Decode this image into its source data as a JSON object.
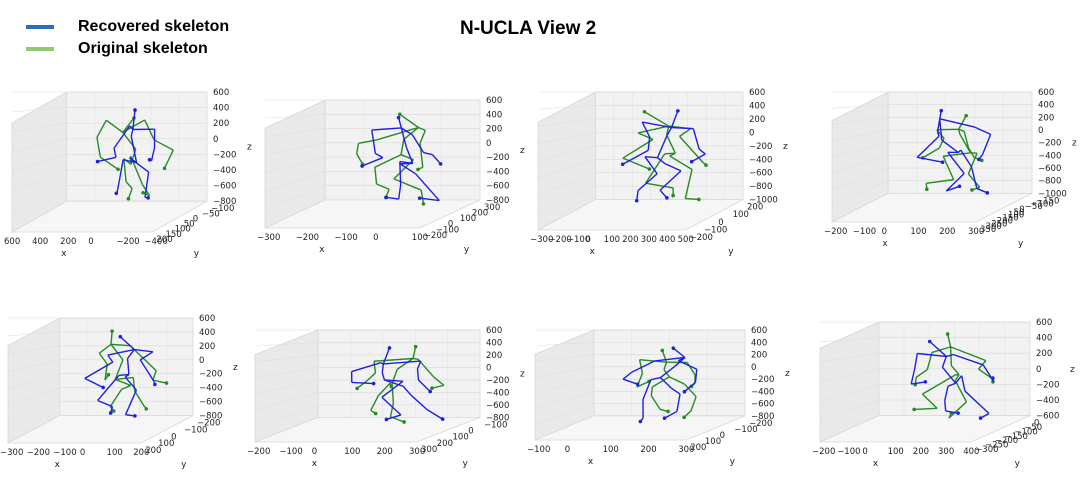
{
  "title": "N-UCLA View 2",
  "legend": [
    {
      "label": "Recovered skeleton",
      "color": "#2f6fba"
    },
    {
      "label": "Original skeleton",
      "color": "#92c77a"
    }
  ],
  "colors": {
    "recovered": "#1f1fe0",
    "original": "#238b23"
  },
  "chart_data": [
    {
      "type": "3d-line",
      "xlabel": "x",
      "ylabel": "y",
      "zlabel": "z",
      "xticks": [
        "600",
        "400",
        "200",
        "0",
        "−200",
        "−400"
      ],
      "yticks": [
        "200",
        "150",
        "100",
        "50",
        "0",
        "−50",
        "−100"
      ],
      "zticks": [
        "600",
        "400",
        "200",
        "0",
        "−200",
        "−400",
        "−600",
        "−800"
      ]
    },
    {
      "type": "3d-line",
      "xlabel": "x",
      "ylabel": "y",
      "zlabel": "z",
      "xticks": [
        "−300",
        "−200",
        "−100",
        "0",
        "100"
      ],
      "yticks": [
        "−200",
        "−100",
        "0",
        "100",
        "200",
        "300"
      ],
      "zticks": [
        "600",
        "400",
        "200",
        "0",
        "−200",
        "−400",
        "−600",
        "−800"
      ]
    },
    {
      "type": "3d-line",
      "xlabel": "x",
      "ylabel": "y",
      "zlabel": "z",
      "xticks": [
        "−300",
        "−200",
        "−100",
        "0",
        "100",
        "200",
        "300",
        "400",
        "500"
      ],
      "yticks": [
        "−200",
        "−100",
        "0",
        "100",
        "200"
      ],
      "zticks": [
        "600",
        "400",
        "200",
        "0",
        "−200",
        "−400",
        "−600",
        "−800",
        "−1000"
      ]
    },
    {
      "type": "3d-line",
      "xlabel": "x",
      "ylabel": "y",
      "zlabel": "z",
      "xticks": [
        "−200",
        "−100",
        "0",
        "100",
        "200",
        "300"
      ],
      "yticks": [
        "350",
        "300",
        "250",
        "200",
        "150",
        "100",
        "50",
        "0",
        "−50",
        "−100",
        "−150"
      ],
      "zticks": [
        "600",
        "400",
        "200",
        "0",
        "−200",
        "−400",
        "−600",
        "−800",
        "−1000"
      ]
    },
    {
      "type": "3d-line",
      "xlabel": "x",
      "ylabel": "y",
      "zlabel": "z",
      "xticks": [
        "−300",
        "−200",
        "−100",
        "0",
        "100",
        "200"
      ],
      "yticks": [
        "200",
        "100",
        "0",
        "−100",
        "−200"
      ],
      "zticks": [
        "600",
        "400",
        "200",
        "0",
        "−200",
        "−400",
        "−600",
        "−800"
      ]
    },
    {
      "type": "3d-line",
      "xlabel": "x",
      "ylabel": "y",
      "zlabel": "z",
      "xticks": [
        "−200",
        "−100",
        "0",
        "100",
        "200",
        "300"
      ],
      "yticks": [
        "300",
        "200",
        "100",
        "0",
        "−100"
      ],
      "zticks": [
        "600",
        "400",
        "200",
        "0",
        "−200",
        "−400",
        "−600",
        "−800"
      ]
    },
    {
      "type": "3d-line",
      "xlabel": "x",
      "ylabel": "y",
      "zlabel": "z",
      "xticks": [
        "−100",
        "0",
        "100",
        "200",
        "300"
      ],
      "yticks": [
        "200",
        "100",
        "0",
        "−100",
        "−200"
      ],
      "zticks": [
        "600",
        "400",
        "200",
        "0",
        "−200",
        "−400",
        "−600",
        "−800"
      ]
    },
    {
      "type": "3d-line",
      "xlabel": "x",
      "ylabel": "y",
      "zlabel": "z",
      "xticks": [
        "−200",
        "−100",
        "0",
        "100",
        "200",
        "300",
        "400"
      ],
      "yticks": [
        "−300",
        "−250",
        "−200",
        "−150",
        "−100",
        "−50",
        "0"
      ],
      "zticks": [
        "600",
        "400",
        "200",
        "0",
        "−200",
        "−400",
        "−600"
      ]
    }
  ]
}
